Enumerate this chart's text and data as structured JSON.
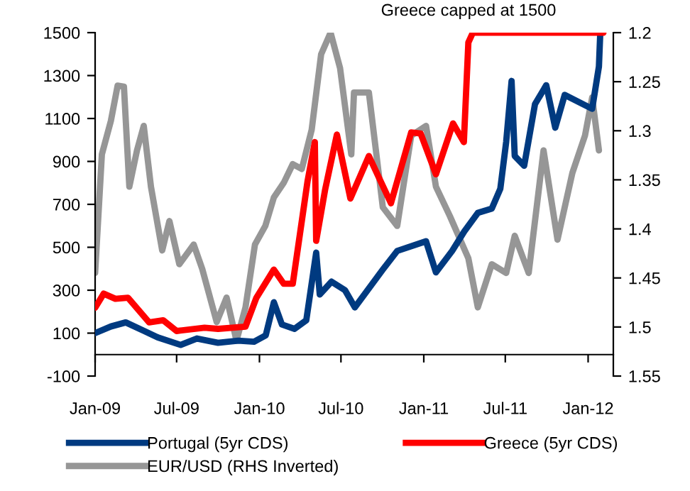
{
  "chart_data": {
    "type": "line",
    "annotations": [
      "Greece capped at 1500"
    ],
    "xlim": [
      "2009-01-01",
      "2012-02-26"
    ],
    "xticks": [
      {
        "value": "2009-01-01",
        "label": "Jan-09"
      },
      {
        "value": "2009-07-01",
        "label": "Jul-09"
      },
      {
        "value": "2010-01-01",
        "label": "Jan-10"
      },
      {
        "value": "2010-07-01",
        "label": "Jul-10"
      },
      {
        "value": "2011-01-01",
        "label": "Jan-11"
      },
      {
        "value": "2011-07-01",
        "label": "Jul-11"
      },
      {
        "value": "2012-01-01",
        "label": "Jan-12"
      }
    ],
    "ylim": [
      -100,
      1500
    ],
    "yticks": [
      -100,
      100,
      300,
      500,
      700,
      900,
      1100,
      1300,
      1500
    ],
    "y2lim": [
      1.55,
      1.2
    ],
    "y2ticks": [
      1.2,
      1.25,
      1.3,
      1.35,
      1.4,
      1.45,
      1.5,
      1.55
    ],
    "grid": false,
    "legend": "bottom",
    "marker": "none",
    "line_style": "solid",
    "series": [
      {
        "name": "Portugal (5yr CDS)",
        "color": "#003a80",
        "x": [
          "2009-01-01",
          "2009-02-05",
          "2009-03-10",
          "2009-04-20",
          "2009-05-20",
          "2009-07-10",
          "2009-08-15",
          "2009-10-01",
          "2009-11-15",
          "2009-12-20",
          "2010-01-15",
          "2010-02-02",
          "2010-02-20",
          "2010-03-20",
          "2010-04-15",
          "2010-05-07",
          "2010-05-15",
          "2010-06-10",
          "2010-07-10",
          "2010-08-01",
          "2010-10-02",
          "2010-11-03",
          "2011-01-06",
          "2011-01-28",
          "2011-03-05",
          "2011-04-01",
          "2011-05-01",
          "2011-06-01",
          "2011-06-20",
          "2011-07-03",
          "2011-07-15",
          "2011-07-22",
          "2011-08-12",
          "2011-09-05",
          "2011-09-30",
          "2011-10-20",
          "2011-11-10",
          "2012-01-10",
          "2012-01-25",
          "2012-01-28"
        ],
        "values": [
          100,
          131,
          150,
          110,
          80,
          45,
          75,
          55,
          65,
          60,
          90,
          244,
          140,
          120,
          160,
          475,
          280,
          340,
          300,
          220,
          396,
          483,
          528,
          383,
          483,
          574,
          660,
          680,
          773,
          991,
          1275,
          925,
          880,
          1167,
          1255,
          1057,
          1210,
          1145,
          1342,
          1500
        ]
      },
      {
        "name": "Greece (5yr CDS)",
        "color": "#ff0000",
        "x": [
          "2009-01-01",
          "2009-01-20",
          "2009-02-15",
          "2009-03-15",
          "2009-05-01",
          "2009-06-01",
          "2009-07-01",
          "2009-09-01",
          "2009-10-01",
          "2009-12-01",
          "2009-12-25",
          "2010-02-02",
          "2010-02-24",
          "2010-03-16",
          "2010-04-18",
          "2010-05-04",
          "2010-05-07",
          "2010-05-27",
          "2010-06-22",
          "2010-07-22",
          "2010-09-01",
          "2010-10-20",
          "2010-12-04",
          "2010-12-25",
          "2011-01-28",
          "2011-03-07",
          "2011-03-31",
          "2011-04-10",
          "2011-04-20",
          "2012-02-04"
        ],
        "values": [
          218,
          284,
          260,
          265,
          150,
          160,
          110,
          125,
          120,
          130,
          264,
          396,
          330,
          330,
          810,
          990,
          530,
          770,
          1025,
          727,
          925,
          705,
          1035,
          1030,
          840,
          1077,
          990,
          1454,
          1500,
          1500
        ]
      },
      {
        "name": "EUR/USD (RHS Inverted)",
        "color": "#969696",
        "axis": "y2",
        "x": [
          "2009-01-01",
          "2009-01-16",
          "2009-02-05",
          "2009-02-20",
          "2009-03-06",
          "2009-03-18",
          "2009-04-04",
          "2009-04-19",
          "2009-05-05",
          "2009-05-30",
          "2009-06-15",
          "2009-07-07",
          "2009-08-08",
          "2009-08-27",
          "2009-09-28",
          "2009-10-20",
          "2009-11-11",
          "2009-12-01",
          "2009-12-22",
          "2010-01-14",
          "2010-02-02",
          "2010-02-24",
          "2010-03-16",
          "2010-04-05",
          "2010-04-27",
          "2010-05-18",
          "2010-06-08",
          "2010-06-29",
          "2010-07-24",
          "2010-07-30",
          "2010-09-01",
          "2010-10-02",
          "2010-11-03",
          "2010-12-04",
          "2011-01-06",
          "2011-01-28",
          "2011-02-28",
          "2011-04-10",
          "2011-05-01",
          "2011-06-01",
          "2011-07-03",
          "2011-07-22",
          "2011-08-22",
          "2011-09-24",
          "2011-10-25",
          "2011-11-27",
          "2011-12-25",
          "2012-01-10",
          "2012-01-25"
        ],
        "values": [
          1.445,
          1.324,
          1.29,
          1.254,
          1.255,
          1.357,
          1.32,
          1.295,
          1.357,
          1.422,
          1.392,
          1.436,
          1.416,
          1.441,
          1.495,
          1.47,
          1.514,
          1.48,
          1.416,
          1.397,
          1.368,
          1.353,
          1.334,
          1.339,
          1.299,
          1.222,
          1.2,
          1.236,
          1.324,
          1.261,
          1.261,
          1.378,
          1.397,
          1.305,
          1.295,
          1.357,
          1.387,
          1.43,
          1.48,
          1.436,
          1.445,
          1.407,
          1.445,
          1.32,
          1.411,
          1.343,
          1.305,
          1.266,
          1.32
        ]
      }
    ]
  }
}
